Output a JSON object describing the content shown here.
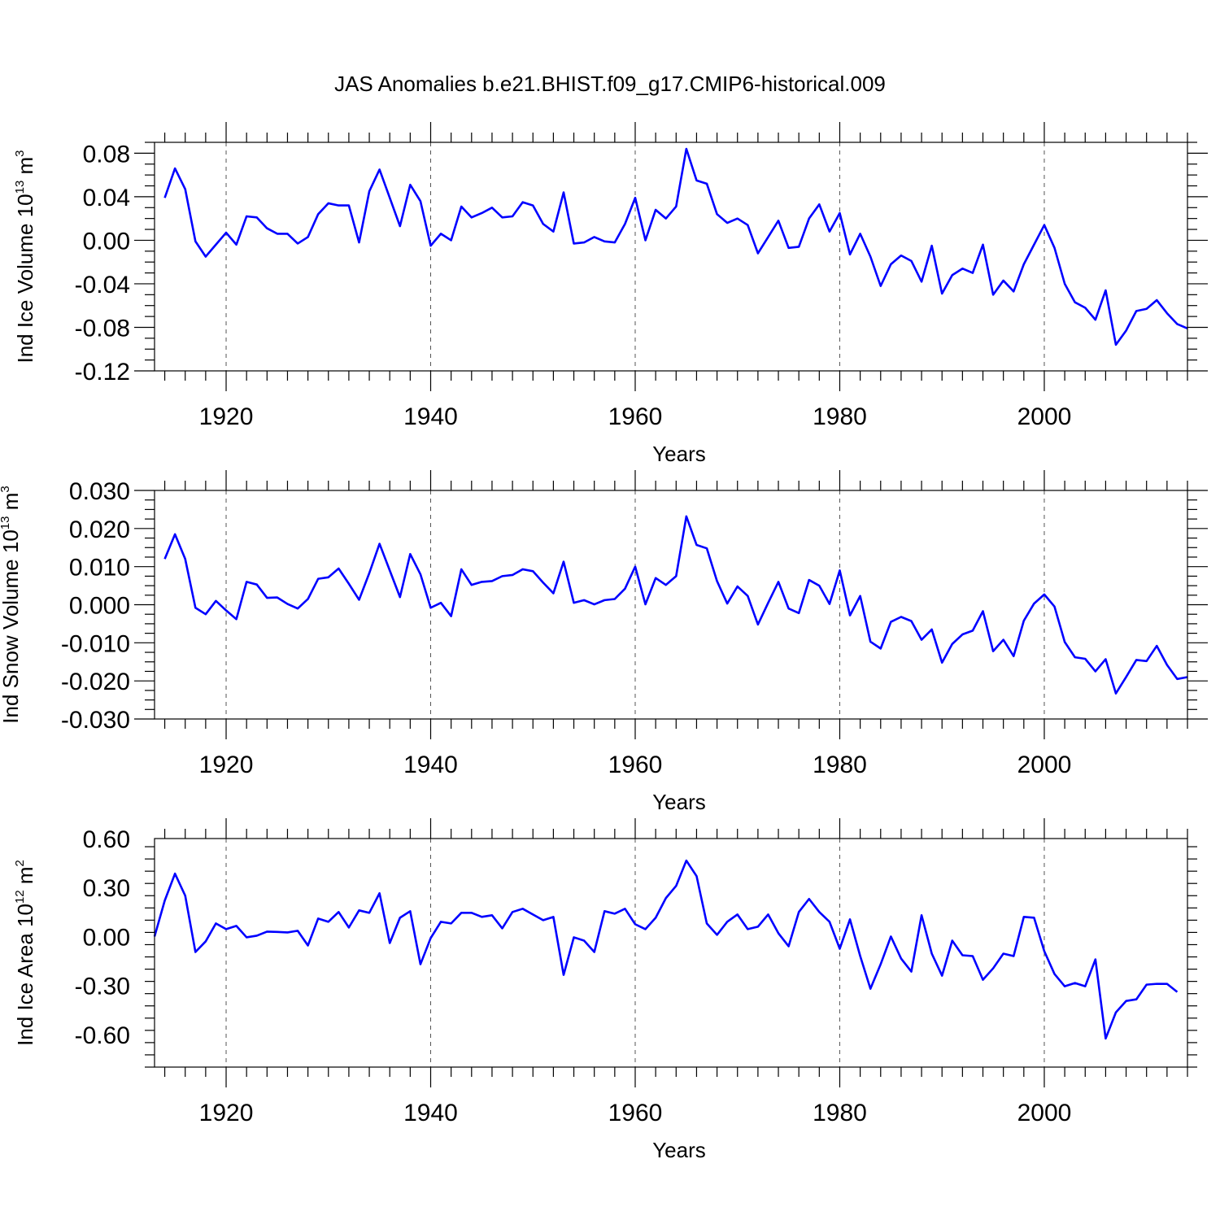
{
  "title": "JAS Anomalies b.e21.BHIST.f09_g17.CMIP6-historical.009",
  "line_color": "#0000ff",
  "chart_data": [
    {
      "type": "line",
      "xlabel": "Years",
      "ylabel": {
        "main": "Ind Ice Volume 10",
        "sup": "13",
        "unit": " m",
        "unit_sup": "3"
      },
      "xlim": [
        1913,
        2014
      ],
      "ylim": [
        -0.12,
        0.09
      ],
      "yticks": [
        -0.12,
        -0.08,
        -0.04,
        0.0,
        0.04,
        0.08
      ],
      "ytick_labels": [
        "-0.12",
        "-0.08",
        "-0.04",
        "0.00",
        "0.04",
        "0.08"
      ],
      "xticks": [
        1920,
        1940,
        1960,
        1980,
        2000
      ],
      "xtick_labels": [
        "1920",
        "1940",
        "1960",
        "1980",
        "2000"
      ],
      "grid": "dashed vertical at major x ticks",
      "x_start": 1914,
      "values": [
        0.039,
        0.066,
        0.047,
        -0.001,
        -0.015,
        -0.004,
        0.007,
        -0.004,
        0.022,
        0.021,
        0.011,
        0.006,
        0.006,
        -0.003,
        0.003,
        0.024,
        0.034,
        0.032,
        0.032,
        -0.002,
        0.045,
        0.065,
        0.039,
        0.013,
        0.051,
        0.036,
        -0.005,
        0.006,
        0.0,
        0.031,
        0.021,
        0.025,
        0.03,
        0.021,
        0.022,
        0.035,
        0.032,
        0.015,
        0.008,
        0.044,
        -0.003,
        -0.002,
        0.003,
        -0.001,
        -0.002,
        0.015,
        0.039,
        0.0,
        0.028,
        0.02,
        0.031,
        0.084,
        0.055,
        0.052,
        0.024,
        0.016,
        0.02,
        0.014,
        -0.012,
        0.003,
        0.018,
        -0.007,
        -0.006,
        0.02,
        0.033,
        0.008,
        0.025,
        -0.013,
        0.006,
        -0.015,
        -0.042,
        -0.022,
        -0.014,
        -0.019,
        -0.038,
        -0.005,
        -0.049,
        -0.032,
        -0.026,
        -0.03,
        -0.004,
        -0.05,
        -0.037,
        -0.047,
        -0.022,
        -0.004,
        0.014,
        -0.007,
        -0.04,
        -0.057,
        -0.062,
        -0.073,
        -0.046,
        -0.096,
        -0.083,
        -0.065,
        -0.063,
        -0.055,
        -0.067,
        -0.077,
        -0.081
      ]
    },
    {
      "type": "line",
      "xlabel": "Years",
      "ylabel": {
        "main": "Ind Snow Volume 10",
        "sup": "13",
        "unit": " m",
        "unit_sup": "3"
      },
      "xlim": [
        1913,
        2014
      ],
      "ylim": [
        -0.03,
        0.03
      ],
      "yticks": [
        -0.03,
        -0.02,
        -0.01,
        0.0,
        0.01,
        0.02,
        0.03
      ],
      "ytick_labels": [
        "-0.030",
        "-0.020",
        "-0.010",
        "0.000",
        "0.010",
        "0.020",
        "0.030"
      ],
      "xticks": [
        1920,
        1940,
        1960,
        1980,
        2000
      ],
      "xtick_labels": [
        "1920",
        "1940",
        "1960",
        "1980",
        "2000"
      ],
      "grid": "dashed vertical at major x ticks",
      "x_start": 1914,
      "values": [
        0.012,
        0.0185,
        0.012,
        -0.0008,
        -0.0025,
        0.001,
        -0.0015,
        -0.0038,
        0.006,
        0.0053,
        0.0018,
        0.0019,
        0.0002,
        -0.001,
        0.0015,
        0.0068,
        0.0072,
        0.0095,
        0.0055,
        0.0013,
        0.0083,
        0.016,
        0.009,
        0.002,
        0.0133,
        0.008,
        -0.0008,
        0.0005,
        -0.003,
        0.0093,
        0.0052,
        0.006,
        0.0062,
        0.0075,
        0.0078,
        0.0093,
        0.0088,
        0.0058,
        0.003,
        0.0113,
        0.0005,
        0.0012,
        0.0001,
        0.0012,
        0.0015,
        0.0042,
        0.01,
        0.0001,
        0.007,
        0.0052,
        0.0075,
        0.0232,
        0.0157,
        0.0148,
        0.0062,
        0.0003,
        0.0048,
        0.0023,
        -0.0052,
        0.0005,
        0.006,
        -0.001,
        -0.0022,
        0.0065,
        0.005,
        0.0002,
        0.009,
        -0.0028,
        0.0023,
        -0.0097,
        -0.0115,
        -0.0045,
        -0.0032,
        -0.0043,
        -0.0092,
        -0.0065,
        -0.0152,
        -0.0103,
        -0.0078,
        -0.0068,
        -0.0017,
        -0.0122,
        -0.0092,
        -0.0135,
        -0.0042,
        0.0003,
        0.0027,
        -0.0005,
        -0.0098,
        -0.0138,
        -0.0142,
        -0.0175,
        -0.0143,
        -0.0233,
        -0.019,
        -0.0145,
        -0.0148,
        -0.0108,
        -0.0158,
        -0.0195,
        -0.019
      ]
    },
    {
      "type": "line",
      "xlabel": "Years",
      "ylabel": {
        "main": "Ind Ice Area 10",
        "sup": "12",
        "unit": " m",
        "unit_sup": "2"
      },
      "xlim": [
        1913,
        2014
      ],
      "ylim": [
        -0.8,
        0.6
      ],
      "yticks": [
        -0.6,
        -0.3,
        0.0,
        0.3,
        0.6
      ],
      "ytick_labels": [
        "-0.60",
        "-0.30",
        "0.00",
        "0.30",
        "0.60"
      ],
      "xticks": [
        1920,
        1940,
        1960,
        1980,
        2000
      ],
      "xtick_labels": [
        "1920",
        "1940",
        "1960",
        "1980",
        "2000"
      ],
      "grid": "dashed vertical at major x ticks",
      "x_start": 1913,
      "values": [
        0.0,
        0.22,
        0.385,
        0.25,
        -0.095,
        -0.03,
        0.08,
        0.045,
        0.065,
        -0.005,
        0.005,
        0.03,
        0.028,
        0.025,
        0.035,
        -0.055,
        0.11,
        0.09,
        0.15,
        0.055,
        0.16,
        0.145,
        0.265,
        -0.04,
        0.115,
        0.155,
        -0.17,
        -0.01,
        0.09,
        0.08,
        0.145,
        0.145,
        0.12,
        0.13,
        0.05,
        0.15,
        0.17,
        0.135,
        0.1,
        0.12,
        -0.235,
        -0.005,
        -0.025,
        -0.095,
        0.155,
        0.14,
        0.17,
        0.075,
        0.045,
        0.115,
        0.235,
        0.31,
        0.465,
        0.37,
        0.08,
        0.01,
        0.09,
        0.135,
        0.045,
        0.06,
        0.135,
        0.02,
        -0.06,
        0.15,
        0.23,
        0.15,
        0.09,
        -0.075,
        0.105,
        -0.12,
        -0.32,
        -0.17,
        0.0,
        -0.135,
        -0.215,
        0.13,
        -0.105,
        -0.24,
        -0.025,
        -0.115,
        -0.12,
        -0.265,
        -0.195,
        -0.105,
        -0.12,
        0.12,
        0.115,
        -0.09,
        -0.23,
        -0.305,
        -0.285,
        -0.305,
        -0.14,
        -0.625,
        -0.465,
        -0.395,
        -0.385,
        -0.295,
        -0.29,
        -0.29,
        -0.34
      ]
    }
  ]
}
